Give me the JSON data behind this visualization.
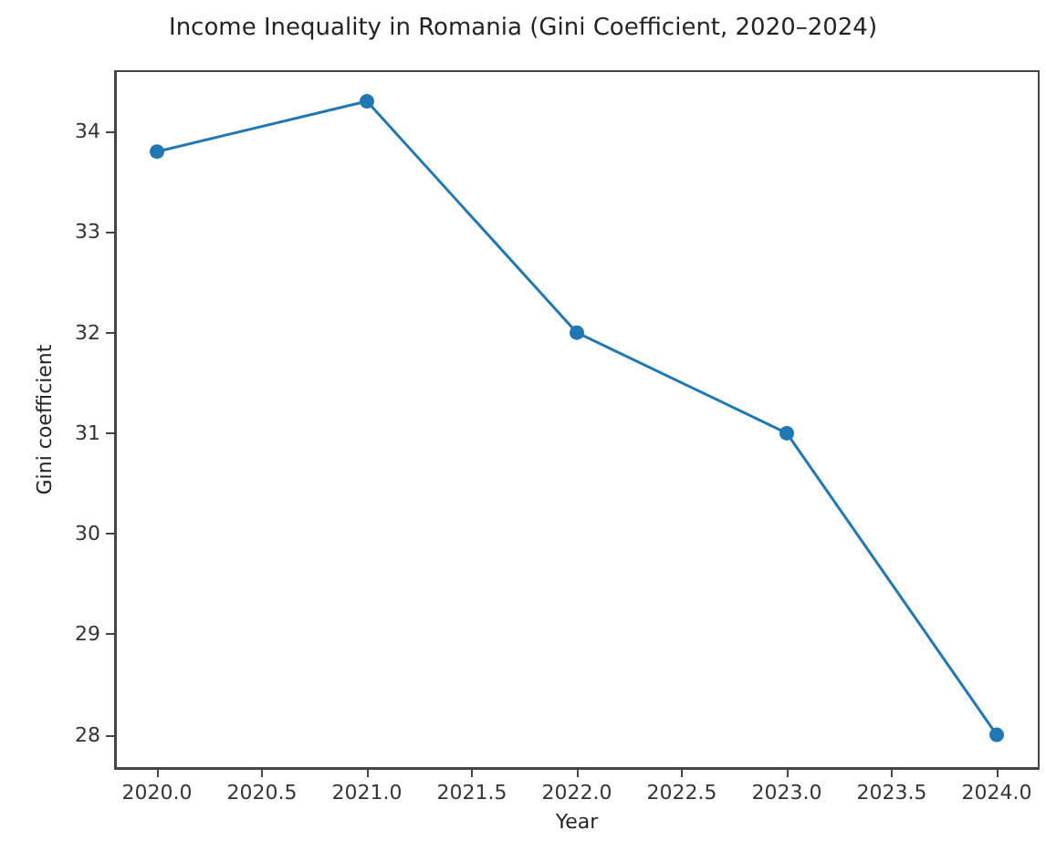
{
  "chart_data": {
    "type": "line",
    "title": "Income Inequality in Romania (Gini Coefficient, 2020–2024)",
    "xlabel": "Year",
    "ylabel": "Gini coefficient",
    "x": [
      2020,
      2021,
      2022,
      2023,
      2024
    ],
    "series": [
      {
        "color": "#1f77b4",
        "values": [
          33.8,
          34.3,
          32.0,
          31.0,
          28.0
        ]
      }
    ],
    "xlim": [
      2019.8,
      2024.2
    ],
    "xticks": [
      {
        "value": 2020,
        "label": "2020.0"
      },
      {
        "value": 2020.5,
        "label": "2020.5"
      },
      {
        "value": 2021,
        "label": "2021.0"
      },
      {
        "value": 2021.5,
        "label": "2021.5"
      },
      {
        "value": 2022,
        "label": "2022.0"
      },
      {
        "value": 2022.5,
        "label": "2022.5"
      },
      {
        "value": 2023,
        "label": "2023.0"
      },
      {
        "value": 2023.5,
        "label": "2023.5"
      },
      {
        "value": 2024,
        "label": "2024.0"
      }
    ],
    "ylim": [
      27.67,
      34.6
    ],
    "yticks": [
      28,
      29,
      30,
      31,
      32,
      33,
      34
    ],
    "grid": false,
    "marker": "circle",
    "line_style": "solid"
  }
}
